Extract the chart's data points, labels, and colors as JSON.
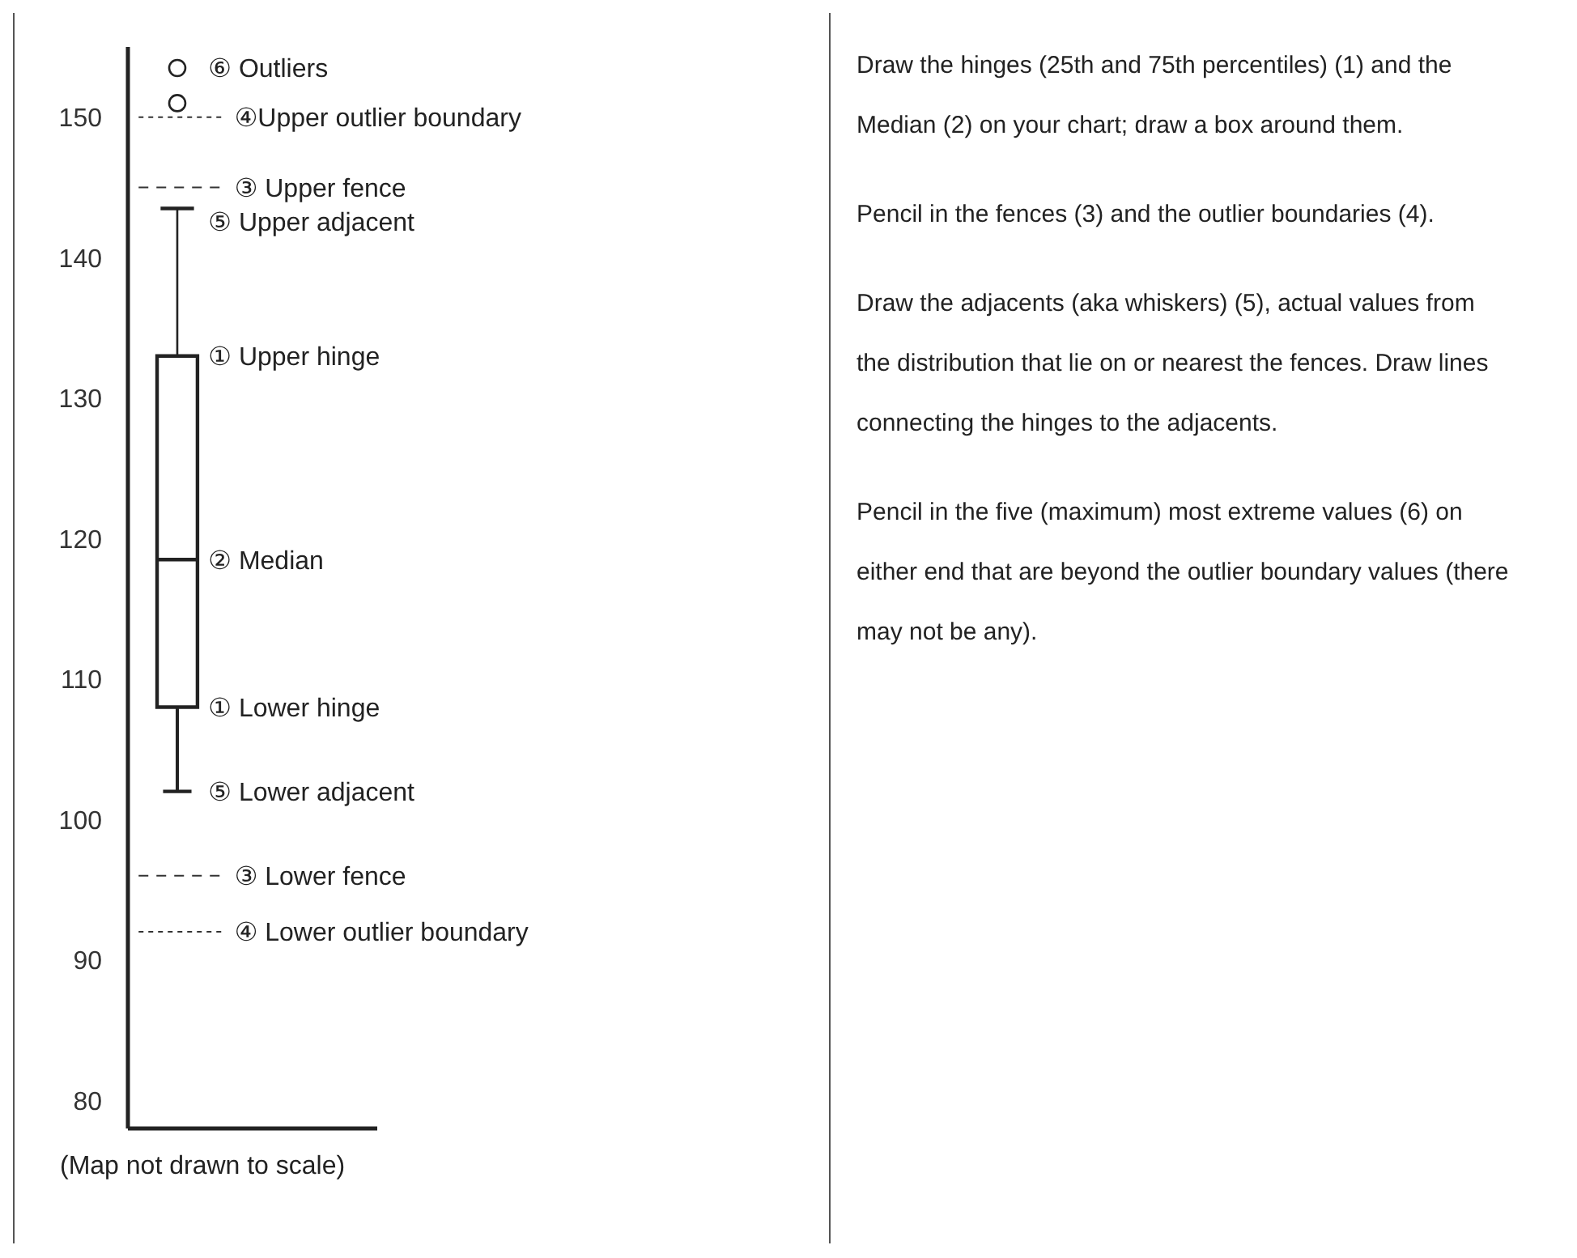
{
  "chart_data": {
    "type": "box",
    "xlabel": "(Map not drawn to scale)",
    "categories": [
      null
    ],
    "boxes": [
      {
        "low": 102,
        "q1": 108,
        "median": 118.5,
        "q3": 133,
        "high": 143.5,
        "outliers": [
          153.5,
          151
        ]
      }
    ],
    "color": "#222222",
    "ylim": [
      78,
      155
    ],
    "yticks": [
      80,
      90,
      100,
      110,
      120,
      130,
      140,
      150
    ],
    "tick_labels": "y",
    "grid": false,
    "legend": false,
    "ref_lines": [
      {
        "axis": "y",
        "value": 150,
        "label": "④Upper outlier boundary",
        "line_style": "dotted"
      },
      {
        "axis": "y",
        "value": 145,
        "label": "③ Upper fence",
        "line_style": "dashed"
      },
      {
        "axis": "y",
        "value": 96,
        "label": "③ Lower fence",
        "line_style": "dashed"
      },
      {
        "axis": "y",
        "value": 92,
        "label": "④ Lower outlier boundary",
        "line_style": "dotted"
      }
    ],
    "annotations": [
      "⑥ Outliers",
      "⑤ Upper adjacent",
      "① Upper hinge",
      "② Median",
      "① Lower hinge",
      "⑤ Lower adjacent",
      "Draw the hinges (25th and 75th percentiles) (1) and the Median (2) on your chart; draw a box around them.",
      "Pencil in the fences (3) and the outlier boundaries (4).",
      "Draw the adjacents (aka whiskers) (5), actual values from the distribution that lie on or nearest the fences. Draw lines connecting the hinges to the adjacents.",
      "Pencil in the five (maximum) most extreme values (6) on either end that are beyond the outlier boundary values (there may not be any)."
    ]
  }
}
